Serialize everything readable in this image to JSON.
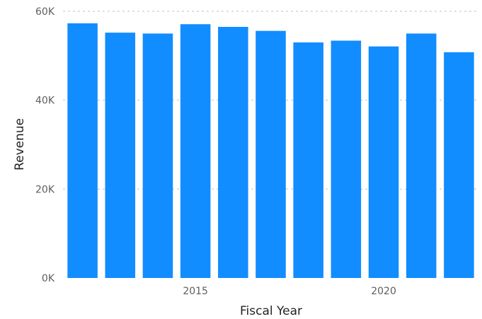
{
  "chart_data": {
    "type": "bar",
    "categories": [
      "2012",
      "2013",
      "2014",
      "2015",
      "2016",
      "2017",
      "2018",
      "2019",
      "2020",
      "2021",
      "2022"
    ],
    "values": [
      57300,
      55200,
      55000,
      57100,
      56500,
      55600,
      53000,
      53400,
      52100,
      55000,
      50800
    ],
    "title": "",
    "xlabel": "Fiscal Year",
    "ylabel": "Revenue",
    "ylim": [
      0,
      60000
    ],
    "yticks": [
      {
        "value": 0,
        "label": "0K"
      },
      {
        "value": 20000,
        "label": "20K"
      },
      {
        "value": 40000,
        "label": "40K"
      },
      {
        "value": 60000,
        "label": "60K"
      }
    ],
    "xticks": [
      {
        "category": "2015",
        "label": "2015"
      },
      {
        "category": "2020",
        "label": "2020"
      }
    ],
    "grid": "horizontal-dotted",
    "bar_color": "#118DFF"
  }
}
